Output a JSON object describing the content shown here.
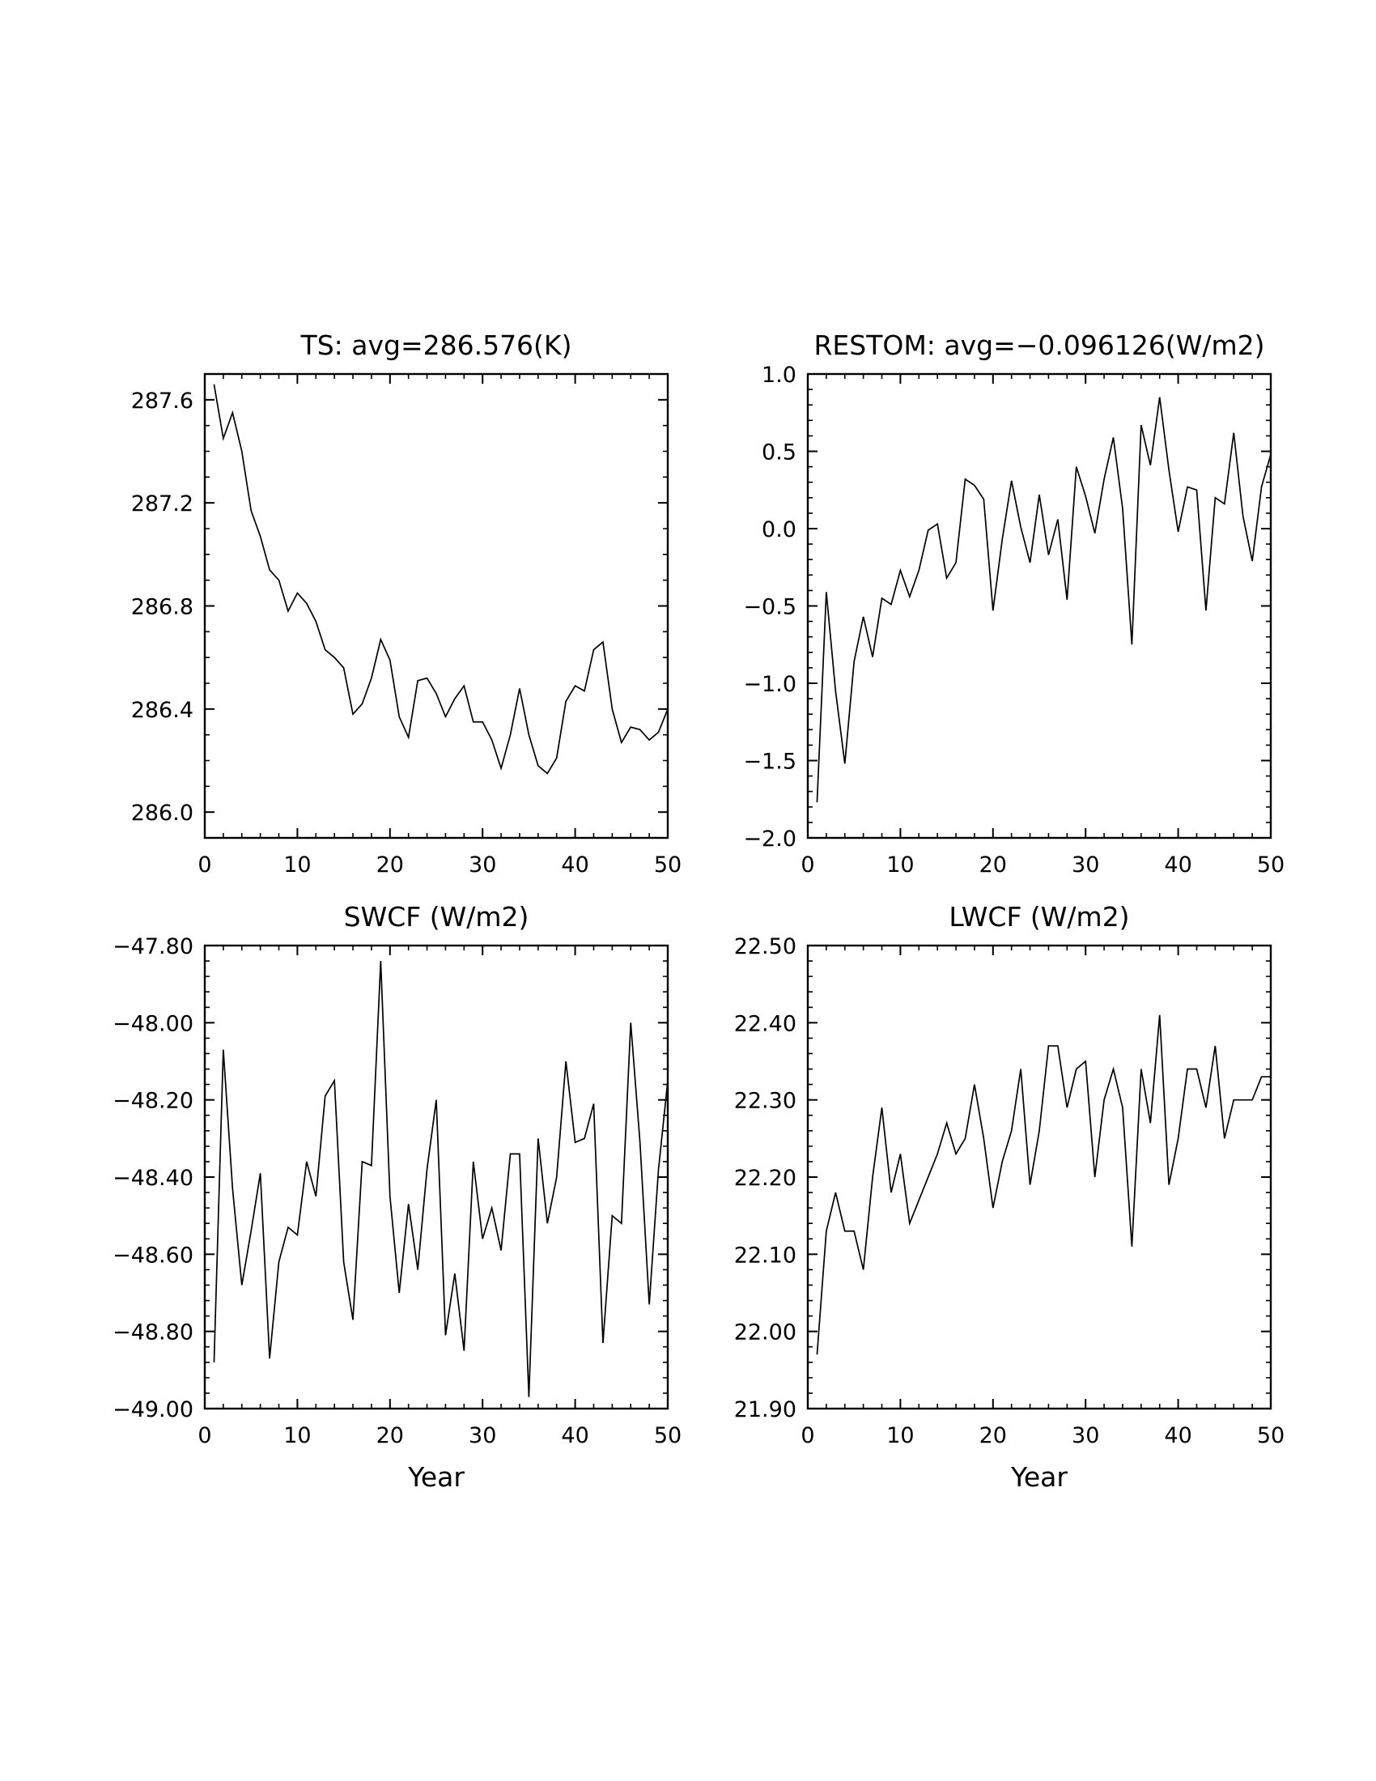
{
  "figure": {
    "background": "#ffffff",
    "line_color": "#000000"
  },
  "chart_data": [
    {
      "type": "line",
      "id": "ts",
      "title": "TS: avg=286.576(K)",
      "xlabel": "",
      "ylabel": "",
      "xlim": [
        0,
        50
      ],
      "ylim": [
        285.9,
        287.7
      ],
      "xticks": [
        0,
        10,
        20,
        30,
        40,
        50
      ],
      "xtick_labels": [
        "0",
        "10",
        "20",
        "30",
        "40",
        "50"
      ],
      "yticks": [
        286.0,
        286.4,
        286.8,
        287.2,
        287.6
      ],
      "ytick_labels": [
        "286.0",
        "286.4",
        "286.8",
        "287.2",
        "287.6"
      ],
      "x_minor_step": 2,
      "y_minor_step": 0.1,
      "series": [
        {
          "name": "TS",
          "x": [
            1,
            2,
            3,
            4,
            5,
            6,
            7,
            8,
            9,
            10,
            11,
            12,
            13,
            14,
            15,
            16,
            17,
            18,
            19,
            20,
            21,
            22,
            23,
            24,
            25,
            26,
            27,
            28,
            29,
            30,
            31,
            32,
            33,
            34,
            35,
            36,
            37,
            38,
            39,
            40,
            41,
            42,
            43,
            44,
            45,
            46,
            47,
            48,
            49,
            50
          ],
          "values": [
            287.66,
            287.45,
            287.55,
            287.4,
            287.17,
            287.07,
            286.94,
            286.9,
            286.78,
            286.85,
            286.81,
            286.74,
            286.63,
            286.6,
            286.56,
            286.38,
            286.42,
            286.52,
            286.67,
            286.59,
            286.37,
            286.29,
            286.51,
            286.52,
            286.46,
            286.37,
            286.44,
            286.49,
            286.35,
            286.35,
            286.28,
            286.17,
            286.3,
            286.48,
            286.3,
            286.18,
            286.15,
            286.21,
            286.43,
            286.49,
            286.47,
            286.63,
            286.66,
            286.4,
            286.27,
            286.33,
            286.32,
            286.28,
            286.31,
            286.4
          ]
        }
      ]
    },
    {
      "type": "line",
      "id": "restom",
      "title": "RESTOM: avg=−0.096126(W/m2)",
      "xlabel": "",
      "ylabel": "",
      "xlim": [
        0,
        50
      ],
      "ylim": [
        -2.0,
        1.0
      ],
      "xticks": [
        0,
        10,
        20,
        30,
        40,
        50
      ],
      "xtick_labels": [
        "0",
        "10",
        "20",
        "30",
        "40",
        "50"
      ],
      "yticks": [
        -2.0,
        -1.5,
        -1.0,
        -0.5,
        0.0,
        0.5,
        1.0
      ],
      "ytick_labels": [
        "−2.0",
        "−1.5",
        "−1.0",
        "−0.5",
        "0.0",
        "0.5",
        "1.0"
      ],
      "x_minor_step": 2,
      "y_minor_step": 0.1,
      "series": [
        {
          "name": "RESTOM",
          "x": [
            1,
            2,
            3,
            4,
            5,
            6,
            7,
            8,
            9,
            10,
            11,
            12,
            13,
            14,
            15,
            16,
            17,
            18,
            19,
            20,
            21,
            22,
            23,
            24,
            25,
            26,
            27,
            28,
            29,
            30,
            31,
            32,
            33,
            34,
            35,
            36,
            37,
            38,
            39,
            40,
            41,
            42,
            43,
            44,
            45,
            46,
            47,
            48,
            49,
            50
          ],
          "values": [
            -1.77,
            -0.41,
            -1.05,
            -1.52,
            -0.86,
            -0.57,
            -0.83,
            -0.45,
            -0.49,
            -0.27,
            -0.44,
            -0.27,
            -0.01,
            0.03,
            -0.32,
            -0.22,
            0.32,
            0.28,
            0.19,
            -0.53,
            -0.07,
            0.31,
            0.01,
            -0.22,
            0.22,
            -0.17,
            0.06,
            -0.46,
            0.4,
            0.21,
            -0.03,
            0.32,
            0.59,
            0.13,
            -0.75,
            0.67,
            0.41,
            0.85,
            0.38,
            -0.02,
            0.27,
            0.25,
            -0.53,
            0.2,
            0.16,
            0.62,
            0.08,
            -0.21,
            0.27,
            0.48
          ]
        }
      ]
    },
    {
      "type": "line",
      "id": "swcf",
      "title": "SWCF (W/m2)",
      "xlabel": "Year",
      "ylabel": "",
      "xlim": [
        0,
        50
      ],
      "ylim": [
        -49.0,
        -47.8
      ],
      "xticks": [
        0,
        10,
        20,
        30,
        40,
        50
      ],
      "xtick_labels": [
        "0",
        "10",
        "20",
        "30",
        "40",
        "50"
      ],
      "yticks": [
        -49.0,
        -48.8,
        -48.6,
        -48.4,
        -48.2,
        -48.0,
        -47.8
      ],
      "ytick_labels": [
        "−49.00",
        "−48.80",
        "−48.60",
        "−48.40",
        "−48.20",
        "−48.00",
        "−47.80"
      ],
      "x_minor_step": 2,
      "y_minor_step": 0.04,
      "series": [
        {
          "name": "SWCF",
          "x": [
            1,
            2,
            3,
            4,
            5,
            6,
            7,
            8,
            9,
            10,
            11,
            12,
            13,
            14,
            15,
            16,
            17,
            18,
            19,
            20,
            21,
            22,
            23,
            24,
            25,
            26,
            27,
            28,
            29,
            30,
            31,
            32,
            33,
            34,
            35,
            36,
            37,
            38,
            39,
            40,
            41,
            42,
            43,
            44,
            45,
            46,
            47,
            48,
            49,
            50
          ],
          "values": [
            -48.88,
            -48.07,
            -48.43,
            -48.68,
            -48.54,
            -48.39,
            -48.87,
            -48.62,
            -48.53,
            -48.55,
            -48.36,
            -48.45,
            -48.19,
            -48.15,
            -48.62,
            -48.77,
            -48.36,
            -48.37,
            -47.84,
            -48.45,
            -48.7,
            -48.47,
            -48.64,
            -48.38,
            -48.2,
            -48.81,
            -48.65,
            -48.85,
            -48.36,
            -48.56,
            -48.48,
            -48.59,
            -48.34,
            -48.34,
            -48.97,
            -48.3,
            -48.52,
            -48.4,
            -48.1,
            -48.31,
            -48.3,
            -48.21,
            -48.83,
            -48.5,
            -48.52,
            -48.0,
            -48.31,
            -48.73,
            -48.38,
            -48.15
          ]
        }
      ]
    },
    {
      "type": "line",
      "id": "lwcf",
      "title": "LWCF (W/m2)",
      "xlabel": "Year",
      "ylabel": "",
      "xlim": [
        0,
        50
      ],
      "ylim": [
        21.9,
        22.5
      ],
      "xticks": [
        0,
        10,
        20,
        30,
        40,
        50
      ],
      "xtick_labels": [
        "0",
        "10",
        "20",
        "30",
        "40",
        "50"
      ],
      "yticks": [
        21.9,
        22.0,
        22.1,
        22.2,
        22.3,
        22.4,
        22.5
      ],
      "ytick_labels": [
        "21.90",
        "22.00",
        "22.10",
        "22.20",
        "22.30",
        "22.40",
        "22.50"
      ],
      "x_minor_step": 2,
      "y_minor_step": 0.02,
      "series": [
        {
          "name": "LWCF",
          "x": [
            1,
            2,
            3,
            4,
            5,
            6,
            7,
            8,
            9,
            10,
            11,
            12,
            13,
            14,
            15,
            16,
            17,
            18,
            19,
            20,
            21,
            22,
            23,
            24,
            25,
            26,
            27,
            28,
            29,
            30,
            31,
            32,
            33,
            34,
            35,
            36,
            37,
            38,
            39,
            40,
            41,
            42,
            43,
            44,
            45,
            46,
            47,
            48,
            49,
            50
          ],
          "values": [
            21.97,
            22.13,
            22.18,
            22.13,
            22.13,
            22.08,
            22.2,
            22.29,
            22.18,
            22.23,
            22.14,
            22.17,
            22.2,
            22.23,
            22.27,
            22.23,
            22.25,
            22.32,
            22.25,
            22.16,
            22.22,
            22.26,
            22.34,
            22.19,
            22.26,
            22.37,
            22.37,
            22.29,
            22.34,
            22.35,
            22.2,
            22.3,
            22.34,
            22.29,
            22.11,
            22.34,
            22.27,
            22.41,
            22.19,
            22.25,
            22.34,
            22.34,
            22.29,
            22.37,
            22.25,
            22.3,
            22.3,
            22.3,
            22.33,
            22.33
          ]
        }
      ]
    }
  ]
}
